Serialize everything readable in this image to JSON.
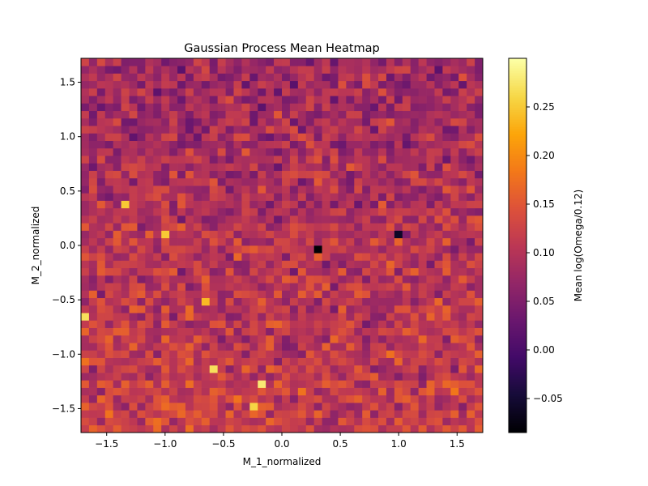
{
  "chart_data": {
    "type": "heatmap",
    "title": "Gaussian Process Mean Heatmap",
    "xlabel": "M_1_normalized",
    "ylabel": "M_2_normalized",
    "colorbar_label": "Mean log(Omega/0.12)",
    "colormap": "inferno",
    "xlim": [
      -1.72,
      1.72
    ],
    "ylim": [
      -1.72,
      1.72
    ],
    "grid": false,
    "resolution": [
      50,
      50
    ],
    "x_ticks": [
      -1.5,
      -1.0,
      -0.5,
      0.0,
      0.5,
      1.0,
      1.5
    ],
    "x_tick_labels": [
      "−1.5",
      "−1.0",
      "−0.5",
      "0.0",
      "0.5",
      "1.0",
      "1.5"
    ],
    "y_ticks": [
      -1.5,
      -1.0,
      -0.5,
      0.0,
      0.5,
      1.0,
      1.5
    ],
    "y_tick_labels": [
      "−1.5",
      "−1.0",
      "−0.5",
      "0.0",
      "0.5",
      "1.0",
      "1.5"
    ],
    "colorbar_range": [
      -0.085,
      0.3
    ],
    "colorbar_ticks": [
      -0.05,
      0.0,
      0.05,
      0.1,
      0.15,
      0.2,
      0.25
    ],
    "colorbar_tick_labels": [
      "−0.05",
      "0.00",
      "0.05",
      "0.10",
      "0.15",
      "0.20",
      "0.25"
    ],
    "typical_value_range": [
      0.03,
      0.17
    ],
    "notable_cells": [
      {
        "x": 0.32,
        "y": -0.02,
        "value": -0.085
      },
      {
        "x": 1.02,
        "y": 0.11,
        "value": -0.06
      },
      {
        "x": -0.15,
        "y": -1.25,
        "value": 0.28
      },
      {
        "x": -1.7,
        "y": -0.63,
        "value": 0.27
      },
      {
        "x": -0.58,
        "y": -1.12,
        "value": 0.27
      },
      {
        "x": -0.23,
        "y": -1.46,
        "value": 0.26
      },
      {
        "x": -1.32,
        "y": 0.39,
        "value": 0.25
      },
      {
        "x": -1.0,
        "y": 0.12,
        "value": 0.25
      },
      {
        "x": -0.65,
        "y": -0.5,
        "value": 0.24
      }
    ]
  }
}
